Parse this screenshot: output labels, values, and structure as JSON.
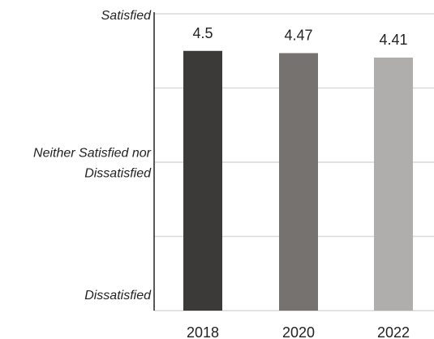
{
  "chart_data": {
    "type": "bar",
    "categories": [
      "2018",
      "2020",
      "2022"
    ],
    "values": [
      4.5,
      4.47,
      4.41
    ],
    "data_labels": [
      "4.5",
      "4.47",
      "4.41"
    ],
    "bar_colors": [
      "#3b3a38",
      "#767270",
      "#b0aeac"
    ],
    "ylim": [
      1,
      5
    ],
    "y_ticks": [
      {
        "value": 5,
        "lines": [
          "Satisfied"
        ]
      },
      {
        "value": 3,
        "lines": [
          "Neither Satisfied nor",
          "Dissatisfied"
        ]
      },
      {
        "value": 1,
        "lines": [
          "Dissatisfied"
        ]
      }
    ],
    "gridlines": [
      5,
      4,
      3,
      2,
      1
    ],
    "grid": true,
    "legend": "none"
  }
}
